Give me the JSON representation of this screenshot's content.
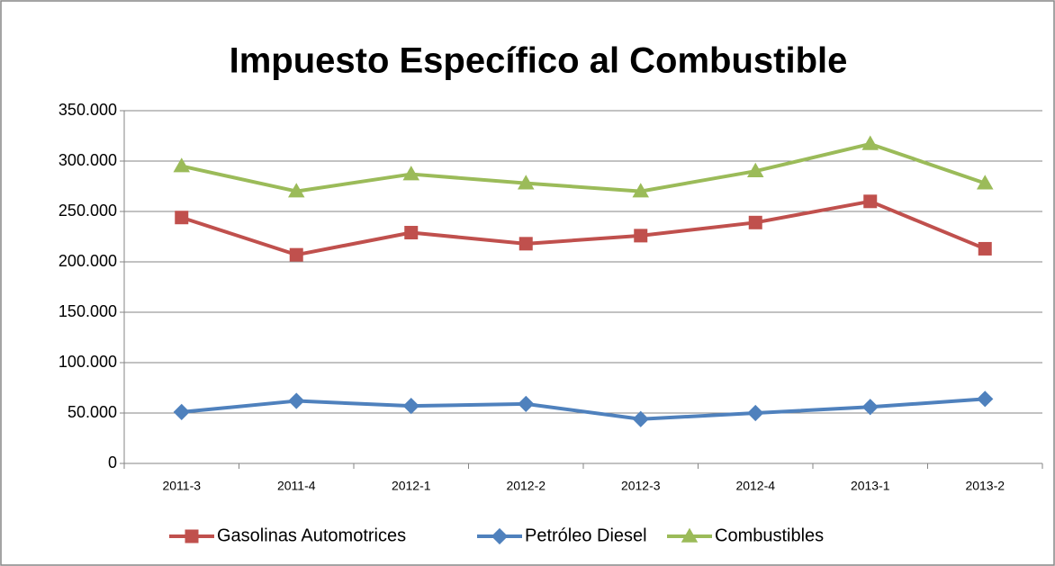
{
  "chart_data": {
    "type": "line",
    "title": "Impuesto Específico al Combustible",
    "categories": [
      "2011-3",
      "2011-4",
      "2012-1",
      "2012-2",
      "2012-3",
      "2012-4",
      "2013-1",
      "2013-2"
    ],
    "series": [
      {
        "name": "Gasolinas Automotrices",
        "color": "#c0504d",
        "marker": "square",
        "values": [
          244000,
          207000,
          229000,
          218000,
          226000,
          239000,
          260000,
          213000
        ]
      },
      {
        "name": "Petróleo Diesel",
        "color": "#4f81bd",
        "marker": "diamond",
        "values": [
          51000,
          62000,
          57000,
          59000,
          44000,
          50000,
          56000,
          64000
        ]
      },
      {
        "name": "Combustibles",
        "color": "#9bbb59",
        "marker": "triangle",
        "values": [
          295000,
          270000,
          287000,
          278000,
          270000,
          290000,
          317000,
          278000
        ]
      }
    ],
    "ylim": [
      0,
      350000
    ],
    "yticks": [
      0,
      {
        "value": 50000,
        "label": "50.000"
      },
      {
        "value": 100000,
        "label": "100.000"
      },
      {
        "value": 150000,
        "label": "150.000"
      },
      {
        "value": 200000,
        "label": "200.000"
      },
      {
        "value": 250000,
        "label": "250.000"
      },
      {
        "value": 300000,
        "label": "300.000"
      },
      {
        "value": 350000,
        "label": "350.000"
      }
    ],
    "grid": true,
    "legend": "bottom"
  }
}
